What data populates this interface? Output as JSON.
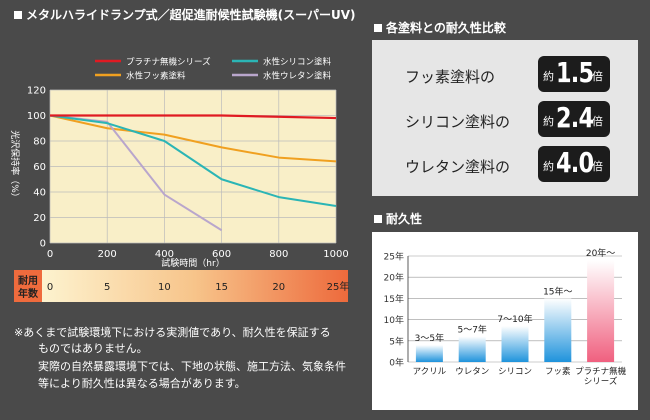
{
  "headers": {
    "line_chart": "メタルハライドランプ式／超促進耐候性試験機(スーパーUV)",
    "comparison": "各塗料との耐久性比較",
    "durability": "耐久性"
  },
  "colors": {
    "platinum": "#e01a22",
    "fluoro": "#f0a020",
    "silicone": "#2bb5b5",
    "urethane": "#b9a6cc",
    "plot_bg": "#f9efc8",
    "bar": "#2e9ee0",
    "bar_hi": "#f26f8b"
  },
  "chart_data": [
    {
      "type": "line",
      "title": "",
      "xlabel": "試験時間（hr）",
      "ylabel": "光沢保持率（%）",
      "xlim": [
        0,
        1000
      ],
      "ylim": [
        0,
        120
      ],
      "x_ticks": [
        "0",
        "200",
        "400",
        "600",
        "800",
        "1000"
      ],
      "y_ticks": [
        "0",
        "20",
        "40",
        "60",
        "80",
        "100",
        "120"
      ],
      "grid": true,
      "legend_position": "top",
      "series": [
        {
          "name": "プラチナ無機シリーズ",
          "color": "#e01a22",
          "x": [
            0,
            200,
            400,
            600,
            800,
            1000
          ],
          "y": [
            100,
            100,
            100,
            100,
            99,
            98
          ]
        },
        {
          "name": "水性シリコン塗料",
          "color": "#2bb5b5",
          "x": [
            0,
            200,
            400,
            600,
            800,
            1000
          ],
          "y": [
            100,
            94,
            80,
            50,
            36,
            29
          ]
        },
        {
          "name": "水性フッ素塗料",
          "color": "#f0a020",
          "x": [
            0,
            200,
            400,
            600,
            800,
            1000
          ],
          "y": [
            100,
            90,
            85,
            75,
            67,
            64
          ]
        },
        {
          "name": "水性ウレタン塗料",
          "color": "#b9a6cc",
          "x": [
            0,
            200,
            400,
            600
          ],
          "y": [
            100,
            95,
            38,
            10
          ]
        }
      ]
    },
    {
      "type": "bar",
      "title": "",
      "categories": [
        "アクリル",
        "ウレタン",
        "シリコン",
        "フッ素",
        "プラチナ無機シリーズ"
      ],
      "values": [
        4,
        6,
        8.5,
        15,
        24
      ],
      "data_labels": [
        "3～5年",
        "5～7年",
        "7～10年",
        "15年～",
        "20年～"
      ],
      "y_ticks": [
        "0年",
        "5年",
        "10年",
        "15年",
        "20年",
        "25年"
      ],
      "ylim": [
        0,
        25
      ],
      "grid": true
    }
  ],
  "years_scale": {
    "label_line1": "耐用",
    "label_line2": "年数",
    "ticks": [
      "0",
      "5",
      "10",
      "15",
      "20",
      "25年"
    ]
  },
  "comparison": {
    "prefix": "約",
    "suffix": "倍",
    "rows": [
      {
        "label": "フッ素塗料の",
        "value": "1.5"
      },
      {
        "label": "シリコン塗料の",
        "value": "2.4"
      },
      {
        "label": "ウレタン塗料の",
        "value": "4.0"
      }
    ]
  },
  "notes": [
    "※あくまで試験環境下における実測値であり、耐久性を保証する",
    "ものではありません。",
    "実際の自然暴露環境下では、下地の状態、施工方法、気象条件",
    "等により耐久性は異なる場合があります。"
  ]
}
